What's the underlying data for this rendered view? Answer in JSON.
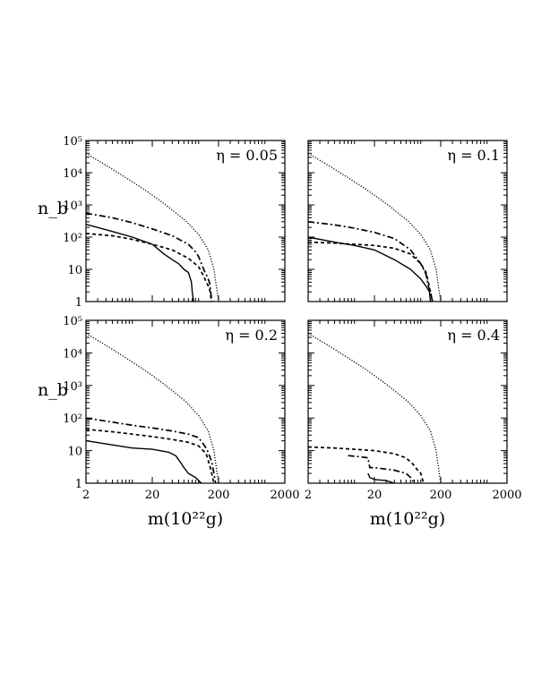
{
  "figure": {
    "xlabel": "m(10²²g)",
    "ylabel": "n_b",
    "x_tick_labels": [
      "2",
      "20",
      "200",
      "2000"
    ],
    "y_tick_labels": [
      "1",
      "10",
      "10²",
      "10³",
      "10⁴",
      "10⁵"
    ]
  },
  "chart_data": [
    {
      "type": "line",
      "title": "η = 0.05",
      "xscale": "log",
      "yscale": "log",
      "xlim": [
        2,
        2000
      ],
      "ylim": [
        1,
        100000
      ],
      "grid": false,
      "series": [
        {
          "style": "dotted",
          "x": [
            2,
            4,
            8,
            16,
            32,
            64,
            100,
            140,
            170,
            190,
            200
          ],
          "y": [
            40000,
            17000,
            7000,
            2800,
            1000,
            320,
            120,
            40,
            10,
            2,
            1
          ]
        },
        {
          "style": "dashdot",
          "x": [
            2,
            5,
            10,
            20,
            40,
            70,
            90,
            100,
            115,
            125,
            135,
            145,
            152,
            158
          ],
          "y": [
            550,
            400,
            280,
            180,
            110,
            60,
            35,
            25,
            12,
            8,
            6,
            4,
            2,
            1
          ]
        },
        {
          "style": "dashed",
          "x": [
            2,
            5,
            10,
            20,
            40,
            70,
            100,
            120,
            130,
            140,
            150,
            155
          ],
          "y": [
            130,
            110,
            85,
            60,
            40,
            22,
            12,
            6,
            4,
            3,
            2,
            1
          ]
        },
        {
          "style": "solid",
          "x": [
            2,
            5,
            10,
            20,
            30,
            40,
            50,
            60,
            70,
            78,
            80,
            84
          ],
          "y": [
            250,
            150,
            100,
            60,
            30,
            20,
            15,
            10,
            8,
            4,
            2,
            1
          ]
        }
      ]
    },
    {
      "type": "line",
      "title": "η = 0.1",
      "xscale": "log",
      "yscale": "log",
      "xlim": [
        2,
        2000
      ],
      "ylim": [
        1,
        100000
      ],
      "grid": false,
      "series": [
        {
          "style": "dotted",
          "x": [
            2,
            4,
            8,
            16,
            32,
            64,
            100,
            140,
            170,
            190,
            200
          ],
          "y": [
            40000,
            17000,
            7000,
            2800,
            1000,
            320,
            120,
            40,
            10,
            2,
            1
          ]
        },
        {
          "style": "dashdot",
          "x": [
            2,
            5,
            10,
            20,
            40,
            70,
            100,
            120,
            130,
            140,
            150
          ],
          "y": [
            300,
            240,
            190,
            140,
            90,
            40,
            15,
            7,
            3,
            2,
            1
          ]
        },
        {
          "style": "dashed",
          "x": [
            2,
            5,
            10,
            20,
            40,
            70,
            100,
            120,
            130,
            140,
            150
          ],
          "y": [
            70,
            65,
            60,
            55,
            45,
            30,
            15,
            8,
            4,
            2,
            1
          ]
        },
        {
          "style": "solid",
          "x": [
            2,
            5,
            10,
            20,
            40,
            70,
            100,
            120,
            135,
            140
          ],
          "y": [
            100,
            70,
            55,
            40,
            20,
            10,
            5,
            3,
            2,
            1
          ]
        }
      ]
    },
    {
      "type": "line",
      "title": "η = 0.2",
      "xscale": "log",
      "yscale": "log",
      "xlim": [
        2,
        2000
      ],
      "ylim": [
        1,
        100000
      ],
      "grid": false,
      "series": [
        {
          "style": "dotted",
          "x": [
            2,
            4,
            8,
            16,
            32,
            64,
            100,
            140,
            170,
            190,
            200
          ],
          "y": [
            40000,
            17000,
            7000,
            2800,
            1000,
            320,
            120,
            40,
            10,
            2,
            1
          ]
        },
        {
          "style": "dashdot",
          "x": [
            2,
            5,
            10,
            20,
            40,
            70,
            100,
            130,
            150,
            160,
            170,
            180
          ],
          "y": [
            100,
            75,
            60,
            50,
            40,
            32,
            25,
            12,
            6,
            4,
            2,
            1
          ]
        },
        {
          "style": "dashed",
          "x": [
            2,
            5,
            10,
            20,
            40,
            70,
            100,
            130,
            150,
            170
          ],
          "y": [
            45,
            38,
            32,
            27,
            22,
            18,
            14,
            8,
            3,
            1
          ]
        },
        {
          "style": "solid",
          "x": [
            2,
            5,
            10,
            20,
            35,
            45,
            55,
            60,
            70,
            90,
            110
          ],
          "y": [
            20,
            15,
            12,
            11,
            9,
            7,
            4,
            3,
            2,
            1.5,
            1
          ]
        }
      ]
    },
    {
      "type": "line",
      "title": "η = 0.4",
      "xscale": "log",
      "yscale": "log",
      "xlim": [
        2,
        2000
      ],
      "ylim": [
        1,
        100000
      ],
      "grid": false,
      "series": [
        {
          "style": "dotted",
          "x": [
            2,
            4,
            8,
            16,
            32,
            64,
            100,
            140,
            170,
            190,
            200
          ],
          "y": [
            40000,
            17000,
            7000,
            2800,
            1000,
            320,
            120,
            40,
            10,
            2,
            1
          ]
        },
        {
          "style": "dashed",
          "x": [
            2,
            5,
            10,
            20,
            40,
            60,
            75,
            90,
            100,
            110
          ],
          "y": [
            13,
            12,
            11,
            10,
            8,
            6,
            4,
            2.5,
            2,
            1
          ]
        },
        {
          "style": "dashdot",
          "x": [
            8,
            12,
            16,
            17,
            20,
            40,
            60,
            70,
            80
          ],
          "y": [
            7,
            6.5,
            6,
            3,
            3,
            2.5,
            2,
            1.5,
            1
          ]
        },
        {
          "style": "solid",
          "x": [
            16,
            17,
            20,
            30,
            40
          ],
          "y": [
            2,
            1.5,
            1.3,
            1.2,
            1
          ]
        }
      ]
    }
  ]
}
